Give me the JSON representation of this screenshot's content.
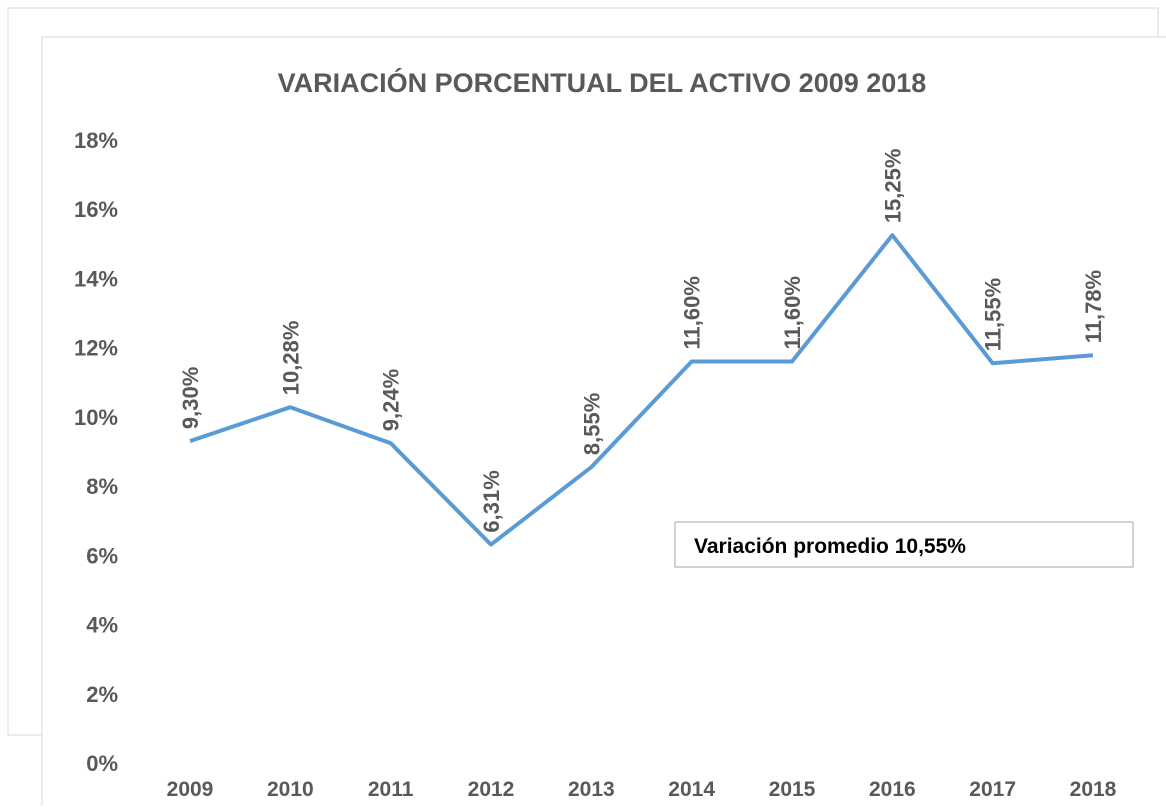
{
  "chart_data": {
    "type": "line",
    "title": "VARIACIÓN PORCENTUAL DEL ACTIVO 2009 2018",
    "categories": [
      "2009",
      "2010",
      "2011",
      "2012",
      "2013",
      "2014",
      "2015",
      "2016",
      "2017",
      "2018"
    ],
    "series": [
      {
        "name": "Variación",
        "color": "#5b9bd5",
        "values": [
          9.3,
          10.28,
          9.24,
          6.31,
          8.55,
          11.6,
          11.6,
          15.25,
          11.55,
          11.78
        ],
        "value_labels": [
          "9,30%",
          "10,28%",
          "9,24%",
          "6,31%",
          "8,55%",
          "11,60%",
          "11,60%",
          "15,25%",
          "11,55%",
          "11,78%"
        ]
      }
    ],
    "ylim": [
      0,
      18
    ],
    "yticks": [
      {
        "value": 0,
        "label": "0%"
      },
      {
        "value": 2,
        "label": "2%"
      },
      {
        "value": 4,
        "label": "4%"
      },
      {
        "value": 6,
        "label": "6%"
      },
      {
        "value": 8,
        "label": "8%"
      },
      {
        "value": 10,
        "label": "10%"
      },
      {
        "value": 12,
        "label": "12%"
      },
      {
        "value": 14,
        "label": "14%"
      },
      {
        "value": 16,
        "label": "16%"
      },
      {
        "value": 18,
        "label": "18%"
      }
    ],
    "annotation": "Variación promedio 10,55%"
  }
}
